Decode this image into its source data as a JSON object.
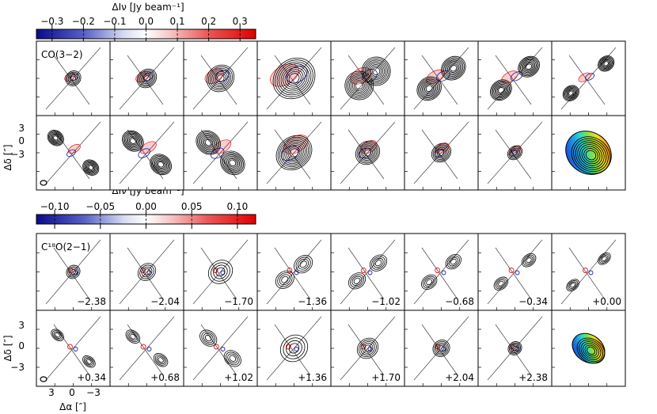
{
  "colorbars": [
    {
      "label": "ΔIν [Jy beam⁻¹]",
      "ticks": [
        "−0.3",
        "−0.2",
        "−0.1",
        "0.0",
        "0.1",
        "0.2",
        "0.3"
      ],
      "range": [
        -0.35,
        0.35
      ]
    },
    {
      "label": "ΔIν [Jy beam⁻¹]",
      "ticks": [
        "−0.10",
        "−0.05",
        "0.00",
        "0.05",
        "0.10"
      ],
      "range": [
        -0.12,
        0.12
      ]
    }
  ],
  "blocks": [
    {
      "line_label": "CO(3−2)",
      "velocities": [],
      "ylabel": "Δδ [″]",
      "yticks": [
        "3",
        "0",
        "−3"
      ]
    },
    {
      "line_label": "C¹⁸O(2−1)",
      "velocities": [
        "−2.38",
        "−2.04",
        "−1.70",
        "−1.36",
        "−1.02",
        "−0.68",
        "−0.34",
        "+0.00",
        "+0.34",
        "+0.68",
        "+1.02",
        "+1.36",
        "+1.70",
        "+2.04",
        "+2.38"
      ],
      "ylabel": "Δδ [″]",
      "yticks": [
        "3",
        "0",
        "−3"
      ]
    }
  ],
  "xaxis": {
    "label": "Δα [″]",
    "ticks": [
      "3",
      "0",
      "−3"
    ]
  },
  "colors": {
    "negative": "#1a1aa8",
    "positive": "#e02020",
    "contour": "#000000"
  }
}
